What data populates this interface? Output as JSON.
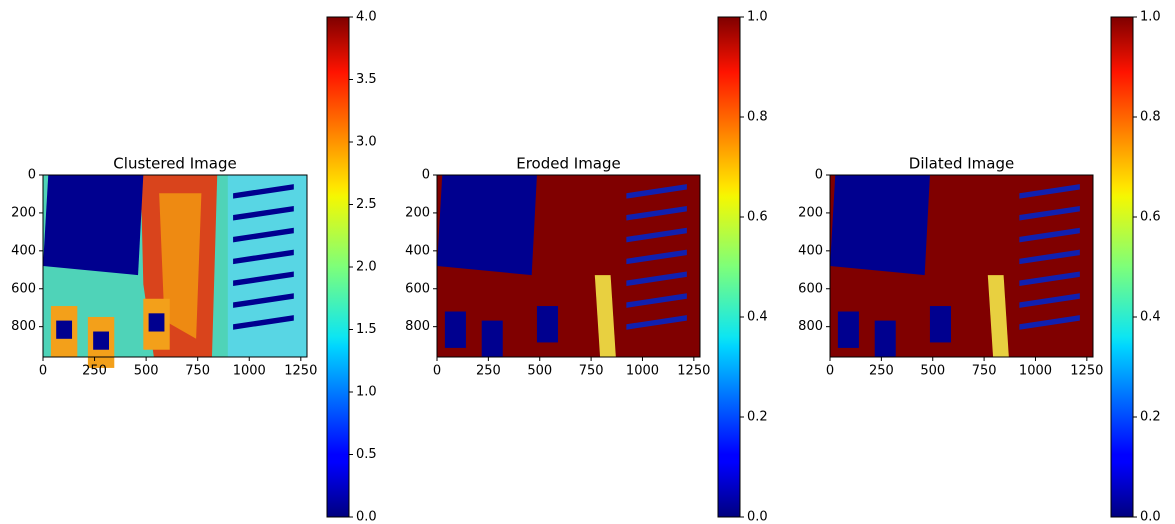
{
  "chart_data": [
    {
      "type": "image",
      "title": "Clustered Image",
      "colormap": "jet",
      "xlim": [
        0,
        1280
      ],
      "ylim": [
        960,
        0
      ],
      "xticks": [
        0,
        250,
        500,
        750,
        1000,
        1250
      ],
      "yticks": [
        0,
        200,
        400,
        600,
        800
      ],
      "clim": [
        0,
        4
      ],
      "cticks": [
        {
          "value": 0,
          "label": "0.0"
        },
        0.5,
        {
          "value": 1,
          "label": "1.0"
        },
        1.5,
        {
          "value": 2,
          "label": "2.0"
        },
        2.5,
        {
          "value": 3,
          "label": "3.0"
        },
        3.5,
        {
          "value": 4,
          "label": "4.0"
        }
      ]
    },
    {
      "type": "image",
      "title": "Eroded Image",
      "colormap": "jet",
      "xlim": [
        0,
        1280
      ],
      "ylim": [
        960,
        0
      ],
      "xticks": [
        0,
        250,
        500,
        750,
        1000,
        1250
      ],
      "yticks": [
        0,
        200,
        400,
        600,
        800
      ],
      "clim": [
        0,
        1
      ],
      "cticks": [
        {
          "value": 0,
          "label": "0.0"
        },
        0.2,
        0.4,
        0.6,
        0.8,
        {
          "value": 1,
          "label": "1.0"
        }
      ]
    },
    {
      "type": "image",
      "title": "Dilated Image",
      "colormap": "jet",
      "xlim": [
        0,
        1280
      ],
      "ylim": [
        960,
        0
      ],
      "xticks": [
        0,
        250,
        500,
        750,
        1000,
        1250
      ],
      "yticks": [
        0,
        200,
        400,
        600,
        800
      ],
      "clim": [
        0,
        1
      ],
      "cticks": [
        {
          "value": 0,
          "label": "0.0"
        },
        0.2,
        0.4,
        0.6,
        0.8,
        {
          "value": 1,
          "label": "1.0"
        }
      ]
    }
  ]
}
